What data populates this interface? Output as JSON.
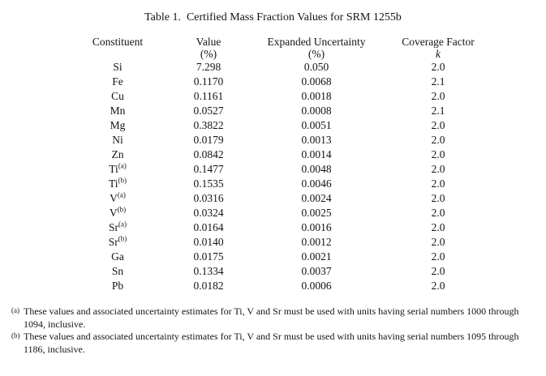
{
  "title": "Table 1.  Certified Mass Fraction Values for SRM 1255b",
  "table": {
    "columns": [
      {
        "label": "Constituent",
        "sub": ""
      },
      {
        "label": "Value",
        "sub": "(%)"
      },
      {
        "label": "Expanded Uncertainty",
        "sub": "(%)"
      },
      {
        "label": "Coverage Factor",
        "sub": "k"
      }
    ],
    "rows": [
      {
        "constituent": "Si",
        "sup": "",
        "value": "7.298",
        "uncertainty": "0.050",
        "k": "2.0"
      },
      {
        "constituent": "Fe",
        "sup": "",
        "value": "0.1170",
        "uncertainty": "0.0068",
        "k": "2.1"
      },
      {
        "constituent": "Cu",
        "sup": "",
        "value": "0.1161",
        "uncertainty": "0.0018",
        "k": "2.0"
      },
      {
        "constituent": "Mn",
        "sup": "",
        "value": "0.0527",
        "uncertainty": "0.0008",
        "k": "2.1"
      },
      {
        "constituent": "Mg",
        "sup": "",
        "value": "0.3822",
        "uncertainty": "0.0051",
        "k": "2.0"
      },
      {
        "constituent": "Ni",
        "sup": "",
        "value": "0.0179",
        "uncertainty": "0.0013",
        "k": "2.0"
      },
      {
        "constituent": "Zn",
        "sup": "",
        "value": "0.0842",
        "uncertainty": "0.0014",
        "k": "2.0"
      },
      {
        "constituent": "Ti",
        "sup": "(a)",
        "value": "0.1477",
        "uncertainty": "0.0048",
        "k": "2.0"
      },
      {
        "constituent": "Ti",
        "sup": "(b)",
        "value": "0.1535",
        "uncertainty": "0.0046",
        "k": "2.0"
      },
      {
        "constituent": "V",
        "sup": "(a)",
        "value": "0.0316",
        "uncertainty": "0.0024",
        "k": "2.0"
      },
      {
        "constituent": "V",
        "sup": "(b)",
        "value": "0.0324",
        "uncertainty": "0.0025",
        "k": "2.0"
      },
      {
        "constituent": "Sr",
        "sup": "(a)",
        "value": "0.0164",
        "uncertainty": "0.0016",
        "k": "2.0"
      },
      {
        "constituent": "Sr",
        "sup": "(b)",
        "value": "0.0140",
        "uncertainty": "0.0012",
        "k": "2.0"
      },
      {
        "constituent": "Ga",
        "sup": "",
        "value": "0.0175",
        "uncertainty": "0.0021",
        "k": "2.0"
      },
      {
        "constituent": "Sn",
        "sup": "",
        "value": "0.1334",
        "uncertainty": "0.0037",
        "k": "2.0"
      },
      {
        "constituent": "Pb",
        "sup": "",
        "value": "0.0182",
        "uncertainty": "0.0006",
        "k": "2.0"
      }
    ]
  },
  "footnotes": [
    {
      "marker": "(a)",
      "text": "These values and associated uncertainty estimates for Ti, V and Sr must be used with units having serial numbers 1000 through 1094, inclusive."
    },
    {
      "marker": "(b)",
      "text": "These values and associated uncertainty estimates for Ti, V and Sr must be used with units having serial numbers 1095 through 1186, inclusive."
    }
  ]
}
